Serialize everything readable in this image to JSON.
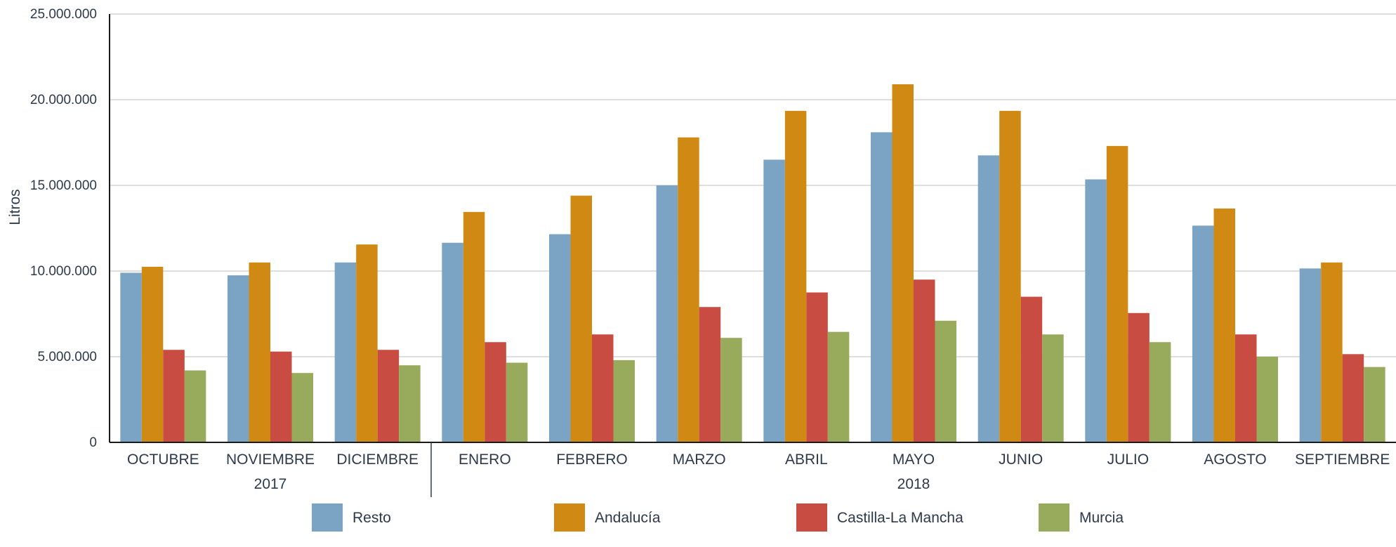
{
  "chart_data": {
    "type": "bar",
    "ylabel": "Litros",
    "xlabel": "",
    "ylim": [
      0,
      25000000
    ],
    "yticks": [
      0,
      5000000,
      10000000,
      15000000,
      20000000,
      25000000
    ],
    "ytick_labels": [
      "0",
      "5.000.000",
      "10.000.000",
      "15.000.000",
      "20.000.000",
      "25.000.000"
    ],
    "grid": true,
    "legend_position": "bottom",
    "categories": [
      "OCTUBRE",
      "NOVIEMBRE",
      "DICIEMBRE",
      "ENERO",
      "FEBRERO",
      "MARZO",
      "ABRIL",
      "MAYO",
      "JUNIO",
      "JULIO",
      "AGOSTO",
      "SEPTIEMBRE"
    ],
    "year_groups": [
      {
        "label": "2017",
        "from": 0,
        "to": 2
      },
      {
        "label": "2018",
        "from": 3,
        "to": 11
      }
    ],
    "series": [
      {
        "name": "Resto",
        "color": "#7ba3c4",
        "values": [
          9900000,
          9750000,
          10500000,
          11650000,
          12150000,
          15000000,
          16500000,
          18100000,
          16750000,
          15350000,
          12650000,
          10150000
        ]
      },
      {
        "name": "Andalucía",
        "color": "#d08a14",
        "values": [
          10250000,
          10500000,
          11550000,
          13450000,
          14400000,
          17800000,
          19350000,
          20900000,
          19350000,
          17300000,
          13650000,
          10500000
        ]
      },
      {
        "name": "Castilla-La Mancha",
        "color": "#c84c41",
        "values": [
          5400000,
          5300000,
          5400000,
          5850000,
          6300000,
          7900000,
          8750000,
          9500000,
          8500000,
          7550000,
          6300000,
          5150000
        ]
      },
      {
        "name": "Murcia",
        "color": "#98ab5c",
        "values": [
          4200000,
          4050000,
          4500000,
          4650000,
          4800000,
          6100000,
          6450000,
          7100000,
          6300000,
          5850000,
          5000000,
          4400000
        ]
      }
    ]
  }
}
